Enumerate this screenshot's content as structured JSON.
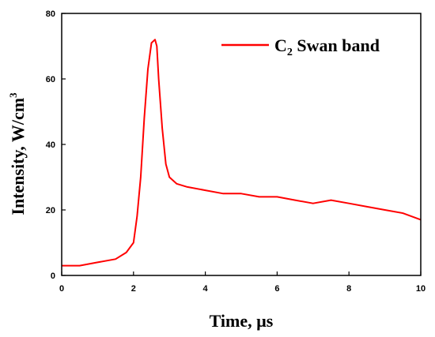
{
  "chart_data": {
    "type": "line",
    "xlabel": "Time, µs",
    "ylabel_main": "Intensity, W/cm",
    "ylabel_sup": "3",
    "xlim": [
      0,
      10
    ],
    "ylim": [
      0,
      80
    ],
    "x_ticks": [
      "0",
      "2",
      "4",
      "6",
      "8",
      "10"
    ],
    "y_ticks": [
      "0",
      "20",
      "40",
      "60",
      "80"
    ],
    "grid": false,
    "legend_position": "top-right",
    "series": [
      {
        "name_main": "C",
        "name_sub": "2",
        "name_rest": " Swan band",
        "color": "#ff0000",
        "x": [
          0.0,
          0.5,
          1.0,
          1.5,
          1.8,
          2.0,
          2.1,
          2.2,
          2.3,
          2.4,
          2.5,
          2.6,
          2.65,
          2.7,
          2.8,
          2.9,
          3.0,
          3.2,
          3.5,
          4.0,
          4.5,
          5.0,
          5.5,
          6.0,
          6.5,
          7.0,
          7.5,
          8.0,
          8.5,
          9.0,
          9.5,
          10.0
        ],
        "y": [
          3,
          3,
          4,
          5,
          7,
          10,
          18,
          30,
          48,
          63,
          71,
          72,
          70,
          60,
          45,
          34,
          30,
          28,
          27,
          26,
          25,
          25,
          24,
          24,
          23,
          22,
          23,
          22,
          21,
          20,
          19,
          17
        ]
      }
    ]
  }
}
